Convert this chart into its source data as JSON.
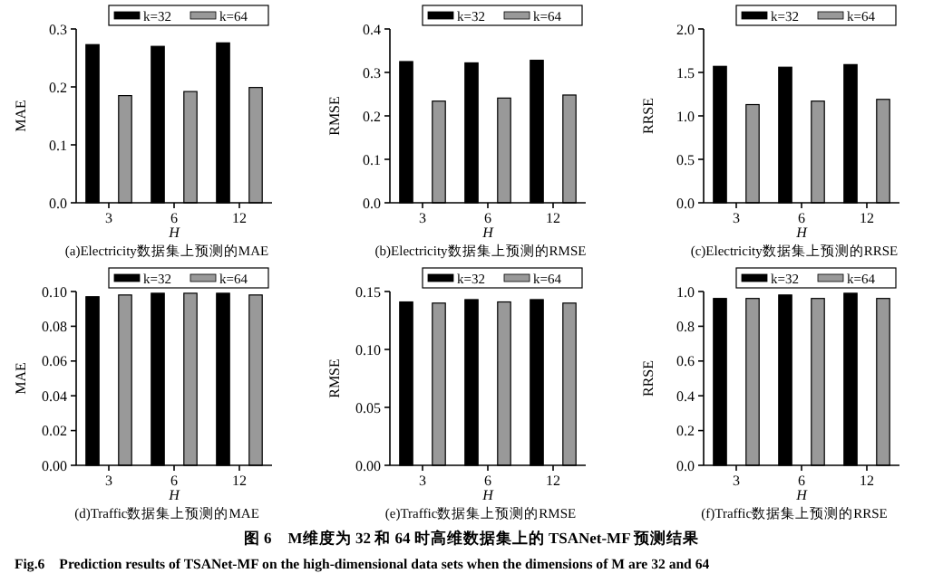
{
  "chart_data": [
    {
      "type": "bar",
      "title": "(a)Electricity数据集上预测的MAE",
      "xlabel": "H",
      "ylabel": "MAE",
      "categories": [
        "3",
        "6",
        "12"
      ],
      "legend": "top right",
      "ylim": [
        0,
        0.3
      ],
      "yticks": [
        {
          "value": 0,
          "label": "0.0"
        },
        0.1,
        0.2,
        0.3
      ],
      "series": [
        {
          "name": "k=32",
          "color": "#000000",
          "values": [
            0.273,
            0.27,
            0.276
          ]
        },
        {
          "name": "k=64",
          "color": "#999999",
          "values": [
            0.185,
            0.192,
            0.199
          ]
        }
      ]
    },
    {
      "type": "bar",
      "title": "(b)Electricity数据集上预测的RMSE",
      "xlabel": "H",
      "ylabel": "RMSE",
      "categories": [
        "3",
        "6",
        "12"
      ],
      "legend": "top right",
      "ylim": [
        0,
        0.4
      ],
      "yticks": [
        {
          "value": 0,
          "label": "0.0"
        },
        0.1,
        0.2,
        0.3,
        0.4
      ],
      "series": [
        {
          "name": "k=32",
          "color": "#000000",
          "values": [
            0.325,
            0.322,
            0.328
          ]
        },
        {
          "name": "k=64",
          "color": "#999999",
          "values": [
            0.234,
            0.241,
            0.248
          ]
        }
      ]
    },
    {
      "type": "bar",
      "title": "(c)Electricity数据集上预测的RRSE",
      "xlabel": "H",
      "ylabel": "RRSE",
      "categories": [
        "3",
        "6",
        "12"
      ],
      "legend": "top right",
      "ylim": [
        0,
        2
      ],
      "yticks": [
        {
          "value": 0,
          "label": "0.0"
        },
        0.5,
        {
          "value": 1,
          "label": "1.0"
        },
        1.5,
        {
          "value": 2,
          "label": "2.0"
        }
      ],
      "series": [
        {
          "name": "k=32",
          "color": "#000000",
          "values": [
            1.57,
            1.56,
            1.59
          ]
        },
        {
          "name": "k=64",
          "color": "#999999",
          "values": [
            1.13,
            1.17,
            1.19
          ]
        }
      ]
    },
    {
      "type": "bar",
      "title": "(d)Traffic数据集上预测的MAE",
      "xlabel": "H",
      "ylabel": "MAE",
      "categories": [
        "3",
        "6",
        "12"
      ],
      "legend": "top right",
      "ylim": [
        0,
        0.1
      ],
      "yticks": [
        {
          "value": 0,
          "label": "0.00"
        },
        {
          "value": 0.02,
          "label": "0.02"
        },
        {
          "value": 0.04,
          "label": "0.04"
        },
        {
          "value": 0.06,
          "label": "0.06"
        },
        {
          "value": 0.08,
          "label": "0.08"
        },
        {
          "value": 0.1,
          "label": "0.10"
        }
      ],
      "series": [
        {
          "name": "k=32",
          "color": "#000000",
          "values": [
            0.097,
            0.099,
            0.099
          ]
        },
        {
          "name": "k=64",
          "color": "#999999",
          "values": [
            0.098,
            0.099,
            0.098
          ]
        }
      ]
    },
    {
      "type": "bar",
      "title": "(e)Traffic数据集上预测的RMSE",
      "xlabel": "H",
      "ylabel": "RMSE",
      "categories": [
        "3",
        "6",
        "12"
      ],
      "legend": "top right",
      "ylim": [
        0,
        0.15
      ],
      "yticks": [
        {
          "value": 0,
          "label": "0.00"
        },
        0.05,
        {
          "value": 0.1,
          "label": "0.10"
        },
        0.15
      ],
      "series": [
        {
          "name": "k=32",
          "color": "#000000",
          "values": [
            0.141,
            0.143,
            0.143
          ]
        },
        {
          "name": "k=64",
          "color": "#999999",
          "values": [
            0.14,
            0.141,
            0.14
          ]
        }
      ]
    },
    {
      "type": "bar",
      "title": "(f)Traffic数据集上预测的RRSE",
      "xlabel": "H",
      "ylabel": "RRSE",
      "categories": [
        "3",
        "6",
        "12"
      ],
      "legend": "top right",
      "ylim": [
        0,
        1
      ],
      "yticks": [
        {
          "value": 0,
          "label": "0.0"
        },
        0.2,
        0.4,
        0.6,
        0.8,
        {
          "value": 1,
          "label": "1.0"
        }
      ],
      "series": [
        {
          "name": "k=32",
          "color": "#000000",
          "values": [
            0.96,
            0.98,
            0.99
          ]
        },
        {
          "name": "k=64",
          "color": "#999999",
          "values": [
            0.96,
            0.96,
            0.96
          ]
        }
      ],
      "annotations": [
        "图 6　M维度为 32 和 64 时高维数据集上的 TSANet-MF 预测结果",
        "Fig.6　Prediction results of TSANet-MF on the high-dimensional data sets when the dimensions of M are 32 and 64"
      ]
    }
  ]
}
